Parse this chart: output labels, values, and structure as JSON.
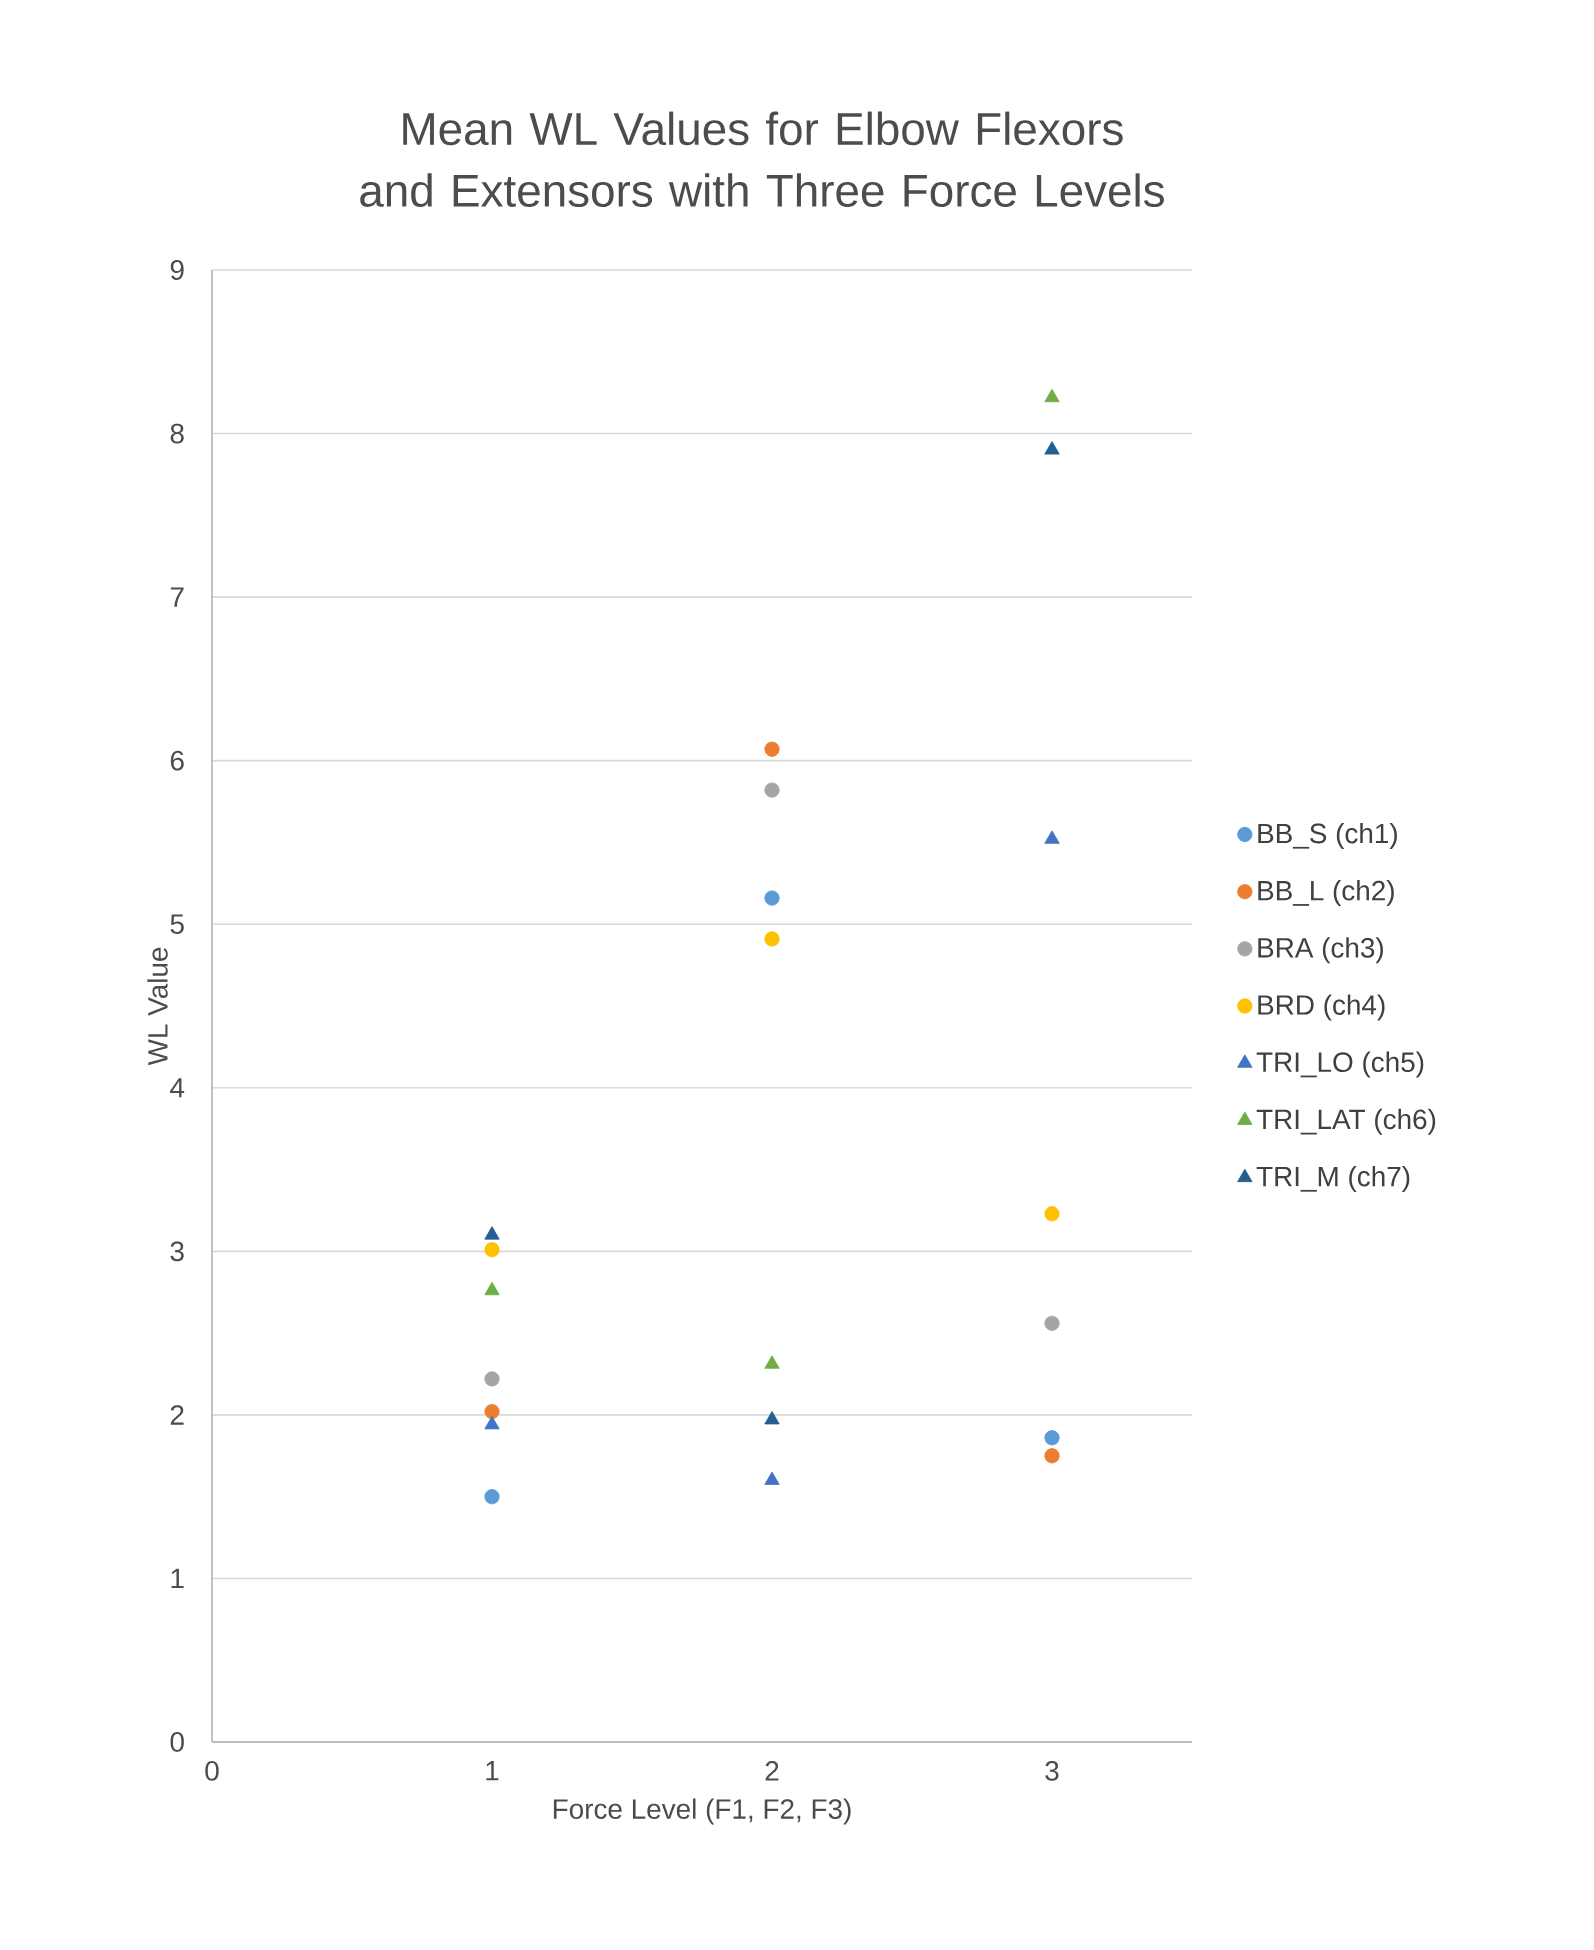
{
  "chart_data": {
    "type": "scatter",
    "title": "Mean WL Values for Elbow Flexors and Extensors with Three Force Levels",
    "xlabel": "Force Level  (F1, F2, F3)",
    "ylabel": "WL Value",
    "x": [
      1,
      2,
      3
    ],
    "xlim": [
      0,
      3.5
    ],
    "xticks": [
      0,
      1,
      2,
      3
    ],
    "ylim": [
      0,
      9
    ],
    "yticks": [
      0,
      1,
      2,
      3,
      4,
      5,
      6,
      7,
      8,
      9
    ],
    "grid": "y",
    "legend": "right",
    "series": [
      {
        "name": "BB_S (ch1)",
        "color": "#5b9bd5",
        "marker": "circle",
        "values": [
          1.5,
          5.16,
          1.86
        ]
      },
      {
        "name": "BB_L (ch2)",
        "color": "#ed7d31",
        "marker": "circle",
        "values": [
          2.02,
          6.07,
          1.75
        ]
      },
      {
        "name": "BRA (ch3)",
        "color": "#a5a5a5",
        "marker": "circle",
        "values": [
          2.22,
          5.82,
          2.56
        ]
      },
      {
        "name": "BRD (ch4)",
        "color": "#ffc000",
        "marker": "circle",
        "values": [
          3.01,
          4.91,
          3.23
        ]
      },
      {
        "name": "TRI_LO (ch5)",
        "color": "#4472c4",
        "marker": "triangle",
        "values": [
          1.94,
          1.6,
          5.52
        ]
      },
      {
        "name": "TRI_LAT (ch6)",
        "color": "#70ad47",
        "marker": "triangle",
        "values": [
          2.76,
          2.31,
          8.22
        ]
      },
      {
        "name": "TRI_M (ch7)",
        "color": "#255e91",
        "marker": "triangle",
        "values": [
          3.1,
          1.97,
          7.9
        ]
      }
    ]
  }
}
